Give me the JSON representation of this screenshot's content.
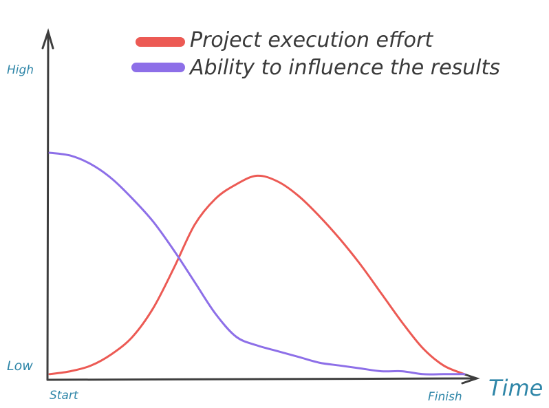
{
  "chart_data": {
    "type": "line",
    "title": "",
    "xlabel": "Time",
    "ylabel": "",
    "x_tick_labels": [
      "Start",
      "Finish"
    ],
    "y_tick_labels": [
      "Low",
      "High"
    ],
    "xlim": [
      0,
      100
    ],
    "ylim": [
      0,
      100
    ],
    "grid": false,
    "legend_position": "top-right",
    "series": [
      {
        "name": "Project execution effort",
        "color": "#ec5a54",
        "x": [
          0,
          5,
          10,
          15,
          20,
          25,
          30,
          35,
          40,
          45,
          50,
          55,
          60,
          65,
          70,
          75,
          80,
          85,
          90,
          95,
          100
        ],
        "y": [
          1,
          2,
          4,
          8,
          14,
          24,
          38,
          53,
          62,
          67,
          70,
          68,
          63,
          56,
          48,
          39,
          29,
          19,
          10,
          4,
          1
        ]
      },
      {
        "name": "Ability to influence the results",
        "color": "#8d6fe8",
        "x": [
          0,
          5,
          10,
          15,
          20,
          25,
          30,
          35,
          40,
          45,
          50,
          55,
          60,
          65,
          70,
          75,
          80,
          85,
          90,
          95,
          100
        ],
        "y": [
          78,
          77,
          74,
          69,
          62,
          54,
          44,
          33,
          22,
          14,
          11,
          9,
          7,
          5,
          4,
          3,
          2,
          2,
          1,
          1,
          1
        ]
      }
    ]
  }
}
